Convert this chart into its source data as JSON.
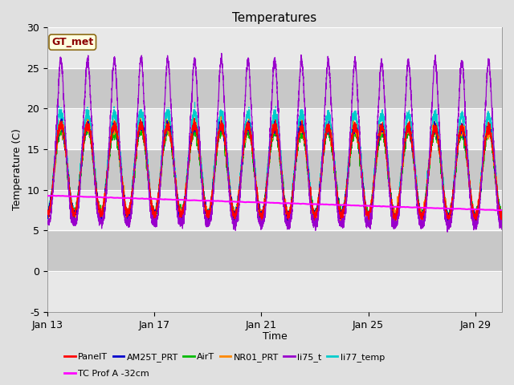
{
  "title": "Temperatures",
  "xlabel": "Time",
  "ylabel": "Temperature (C)",
  "xlim_days": [
    13,
    30
  ],
  "ylim": [
    -5,
    30
  ],
  "yticks": [
    -5,
    0,
    5,
    10,
    15,
    20,
    25,
    30
  ],
  "xtick_labels": [
    "Jan 13",
    "Jan 17",
    "Jan 21",
    "Jan 25",
    "Jan 29"
  ],
  "xtick_positions": [
    13,
    17,
    21,
    25,
    29
  ],
  "bg_color": "#e0e0e0",
  "series": {
    "PanelT": {
      "color": "#ff0000",
      "lw": 0.8
    },
    "AM25T_PRT": {
      "color": "#0000cc",
      "lw": 0.8
    },
    "AirT": {
      "color": "#00bb00",
      "lw": 0.8
    },
    "NR01_PRT": {
      "color": "#ff8800",
      "lw": 0.8
    },
    "li75_t": {
      "color": "#9900cc",
      "lw": 0.9
    },
    "li77_temp": {
      "color": "#00cccc",
      "lw": 0.8
    },
    "TC Prof A -32cm": {
      "color": "#ff00ff",
      "lw": 1.5
    }
  },
  "gt_met_box": {
    "text": "GT_met",
    "text_color": "#8b0000",
    "bg_color": "#ffffe0",
    "edge_color": "#8b6914",
    "fontsize": 9,
    "fontweight": "bold"
  },
  "band_color_dark": "#c8c8c8",
  "band_color_light": "#e8e8e8",
  "n_points": 5000,
  "seed": 42,
  "legend": {
    "row1": [
      "PanelT",
      "AM25T_PRT",
      "AirT",
      "NR01_PRT",
      "li75_t",
      "li77_temp"
    ],
    "row2": [
      "TC Prof A -32cm"
    ]
  }
}
